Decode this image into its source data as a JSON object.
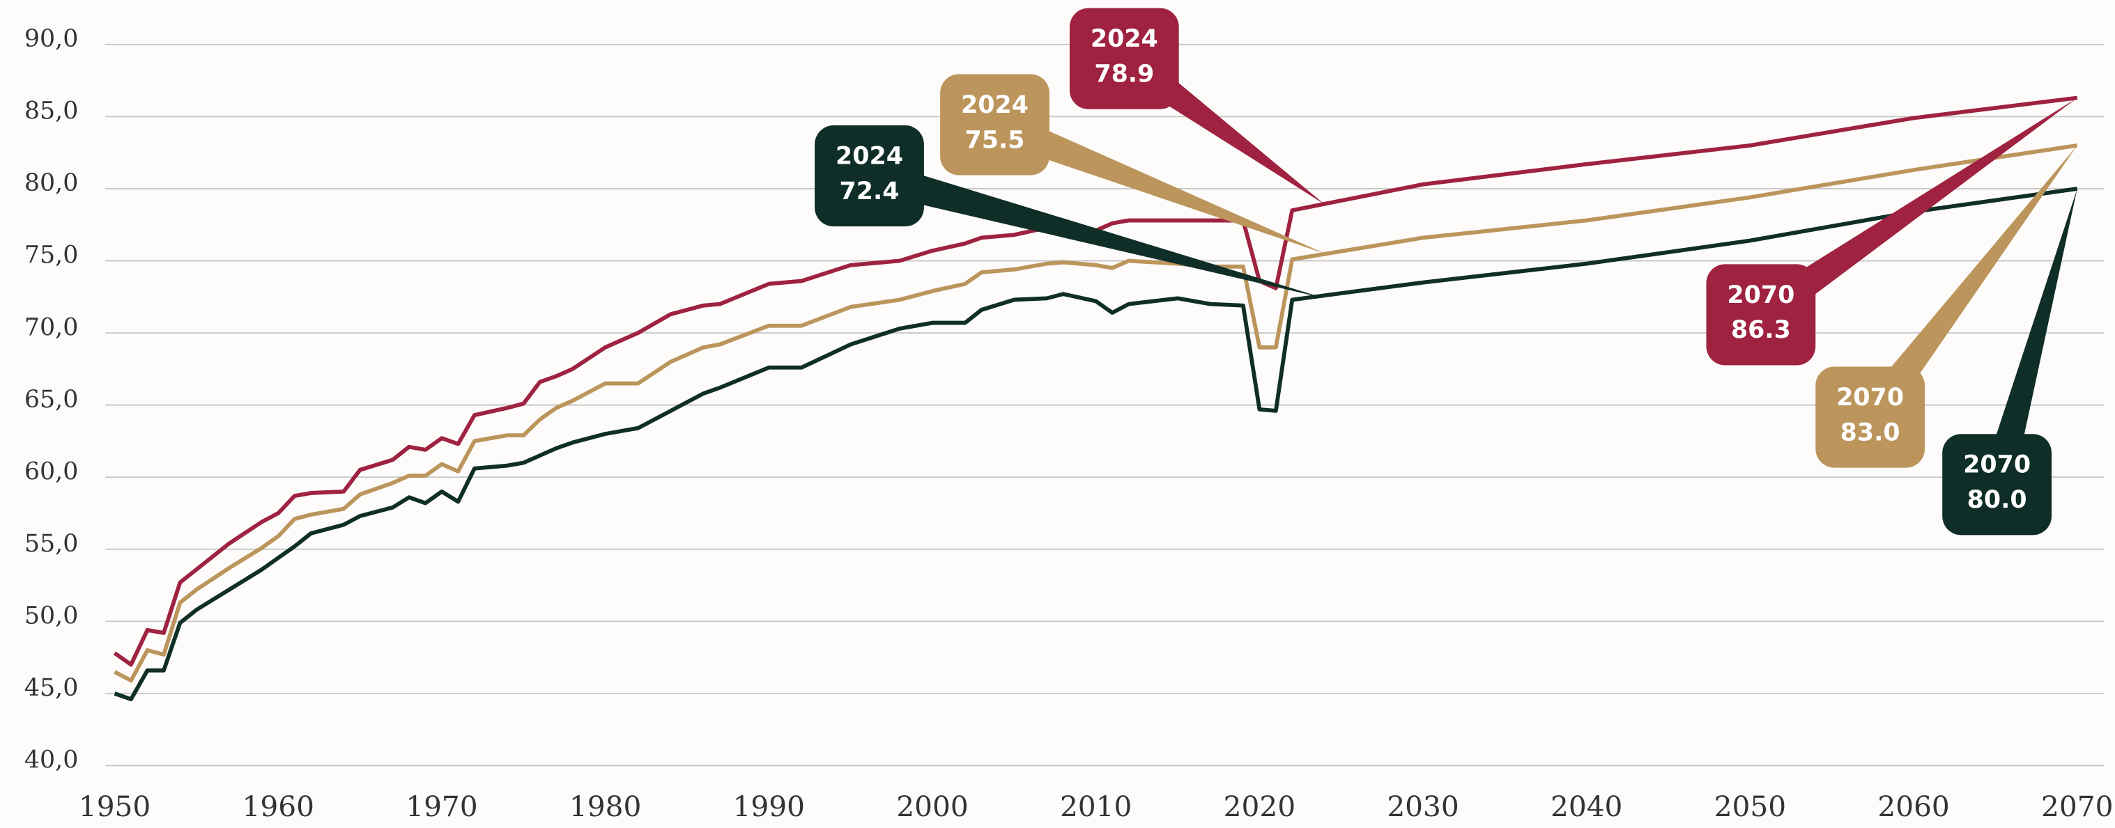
{
  "chart_data": {
    "type": "line",
    "x": [
      1950,
      1951,
      1952,
      1953,
      1954,
      1955,
      1957,
      1959,
      1960,
      1961,
      1962,
      1964,
      1965,
      1967,
      1968,
      1969,
      1970,
      1971,
      1972,
      1974,
      1975,
      1976,
      1977,
      1978,
      1980,
      1982,
      1984,
      1986,
      1987,
      1990,
      1992,
      1995,
      1998,
      2000,
      2002,
      2003,
      2005,
      2007,
      2008,
      2010,
      2011,
      2012,
      2015,
      2017,
      2019,
      2020,
      2021,
      2022,
      2030,
      2040,
      2050,
      2060,
      2070
    ],
    "series": [
      {
        "color": "#9f2241",
        "values": [
          47.8,
          47.0,
          49.4,
          49.2,
          52.7,
          53.6,
          55.4,
          56.9,
          57.5,
          58.7,
          58.9,
          59.0,
          60.5,
          61.2,
          62.1,
          61.9,
          62.7,
          62.3,
          64.3,
          64.8,
          65.1,
          66.6,
          67.0,
          67.5,
          69.0,
          70.0,
          71.3,
          71.9,
          72.0,
          73.4,
          73.6,
          74.7,
          75.0,
          75.7,
          76.2,
          76.6,
          76.8,
          77.3,
          77.3,
          77.1,
          77.6,
          77.8,
          77.8,
          77.8,
          77.8,
          73.6,
          73.1,
          78.5,
          80.3,
          81.7,
          83.0,
          84.9,
          86.3
        ]
      },
      {
        "color": "#bc955c",
        "values": [
          46.5,
          45.9,
          48.0,
          47.7,
          51.3,
          52.2,
          53.7,
          55.1,
          55.9,
          57.1,
          57.4,
          57.8,
          58.8,
          59.6,
          60.1,
          60.1,
          60.9,
          60.4,
          62.5,
          62.9,
          62.9,
          64.0,
          64.8,
          65.3,
          66.5,
          66.5,
          68.0,
          69.0,
          69.2,
          70.5,
          70.5,
          71.8,
          72.3,
          72.9,
          73.4,
          74.2,
          74.4,
          74.8,
          74.9,
          74.7,
          74.5,
          75.0,
          74.8,
          74.6,
          74.6,
          69.0,
          69.0,
          75.1,
          76.6,
          77.8,
          79.4,
          81.3,
          83.0
        ]
      },
      {
        "color": "#0f2e27",
        "values": [
          45.0,
          44.6,
          46.6,
          46.6,
          49.9,
          50.8,
          52.2,
          53.6,
          54.4,
          55.2,
          56.1,
          56.7,
          57.3,
          57.9,
          58.6,
          58.2,
          59.0,
          58.3,
          60.6,
          60.8,
          61.0,
          61.5,
          62.0,
          62.4,
          63.0,
          63.4,
          64.6,
          65.8,
          66.2,
          67.6,
          67.6,
          69.2,
          70.3,
          70.7,
          70.7,
          71.6,
          72.3,
          72.4,
          72.7,
          72.2,
          71.4,
          72.0,
          72.4,
          72.0,
          71.9,
          64.7,
          64.6,
          72.3,
          73.5,
          74.8,
          76.4,
          78.4,
          80.0
        ]
      }
    ],
    "xlim": [
      1950,
      2070
    ],
    "xticks": [
      1950,
      1960,
      1970,
      1980,
      1990,
      2000,
      2010,
      2020,
      2030,
      2040,
      2050,
      2060,
      2070
    ],
    "ylim": [
      40,
      90
    ],
    "yticks": [
      {
        "value": 40,
        "label": "40,0"
      },
      {
        "value": 45,
        "label": "45,0"
      },
      {
        "value": 50,
        "label": "50,0"
      },
      {
        "value": 55,
        "label": "55,0"
      },
      {
        "value": 60,
        "label": "60,0"
      },
      {
        "value": 65,
        "label": "65,0"
      },
      {
        "value": 70,
        "label": "70,0"
      },
      {
        "value": 75,
        "label": "75,0"
      },
      {
        "value": 80,
        "label": "80,0"
      },
      {
        "value": 85,
        "label": "85,0"
      },
      {
        "value": 90,
        "label": "90,0"
      }
    ],
    "grid": true,
    "annotations": [
      {
        "x": 2024,
        "y": 78.9,
        "label": "2024",
        "text": "78.9",
        "color": "#9f2241"
      },
      {
        "x": 2024,
        "y": 75.5,
        "label": "2024",
        "text": "75.5",
        "color": "#bc955c"
      },
      {
        "x": 2024,
        "y": 72.4,
        "label": "2024",
        "text": "72.4",
        "color": "#0f2e27"
      },
      {
        "x": 2070,
        "y": 86.3,
        "label": "2070",
        "text": "86.3",
        "color": "#9f2241"
      },
      {
        "x": 2070,
        "y": 83.0,
        "label": "2070",
        "text": "83.0",
        "color": "#bc955c"
      },
      {
        "x": 2070,
        "y": 80.0,
        "label": "2070",
        "text": "80.0",
        "color": "#0f2e27"
      }
    ]
  }
}
